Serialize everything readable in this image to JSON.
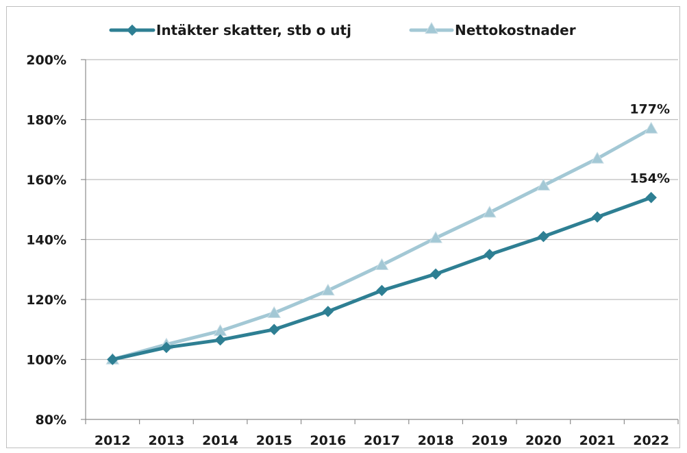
{
  "chart_data": {
    "type": "line",
    "x": [
      "2012",
      "2013",
      "2014",
      "2015",
      "2016",
      "2017",
      "2018",
      "2019",
      "2020",
      "2021",
      "2022"
    ],
    "ylim": [
      80,
      200
    ],
    "yticks": [
      "80%",
      "100%",
      "120%",
      "140%",
      "160%",
      "180%",
      "200%"
    ],
    "ytick_values": [
      80,
      100,
      120,
      140,
      160,
      180,
      200
    ],
    "grid": "horizontal",
    "legend_position": "top",
    "series": [
      {
        "name": "Intäkter skatter, stb o utj",
        "color": "#2e7f93",
        "marker": "diamond",
        "values": [
          100,
          104,
          106.5,
          110,
          116,
          123,
          128.5,
          135,
          141,
          147.5,
          154
        ],
        "end_label": "154%"
      },
      {
        "name": "Nettokostnader",
        "color": "#a3c8d5",
        "marker": "triangle",
        "values": [
          100,
          105,
          109.5,
          115.5,
          123,
          131.5,
          140.5,
          149,
          158,
          167,
          177
        ],
        "end_label": "177%"
      }
    ]
  }
}
